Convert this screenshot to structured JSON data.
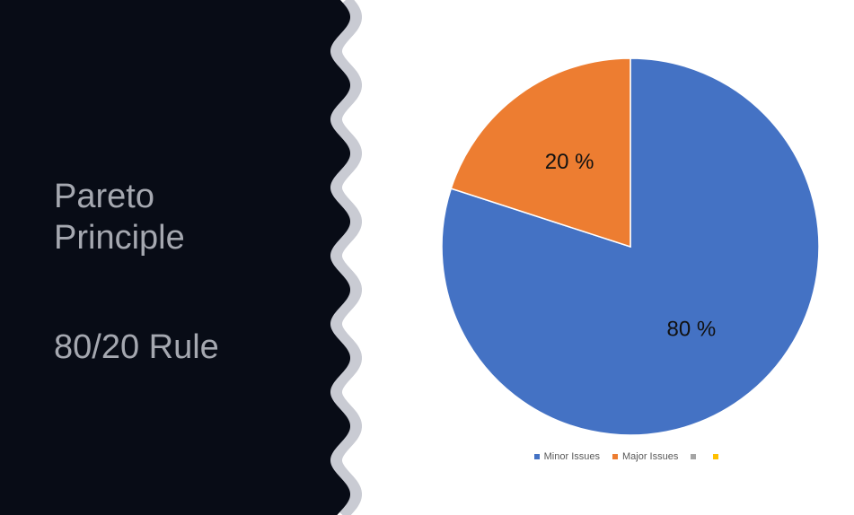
{
  "slide": {
    "title_line1": "Pareto",
    "title_line2": "Principle",
    "subtitle": "80/20 Rule",
    "panel_color": "#080c16",
    "wave_edge_color": "#c9cbd3",
    "text_color": "#a5a8b0"
  },
  "chart_data": {
    "type": "pie",
    "title": "",
    "slices": [
      {
        "name": "Minor Issues",
        "value": 80,
        "label": "80 %",
        "color": "#4472c4"
      },
      {
        "name": "Major Issues",
        "value": 20,
        "label": "20 %",
        "color": "#ed7d31"
      },
      {
        "name": "",
        "value": 0,
        "label": "",
        "color": "#a5a5a5"
      },
      {
        "name": "",
        "value": 0,
        "label": "",
        "color": "#ffc000"
      }
    ],
    "start_angle_deg": 0,
    "direction": "clockwise",
    "legend": "bottom"
  }
}
